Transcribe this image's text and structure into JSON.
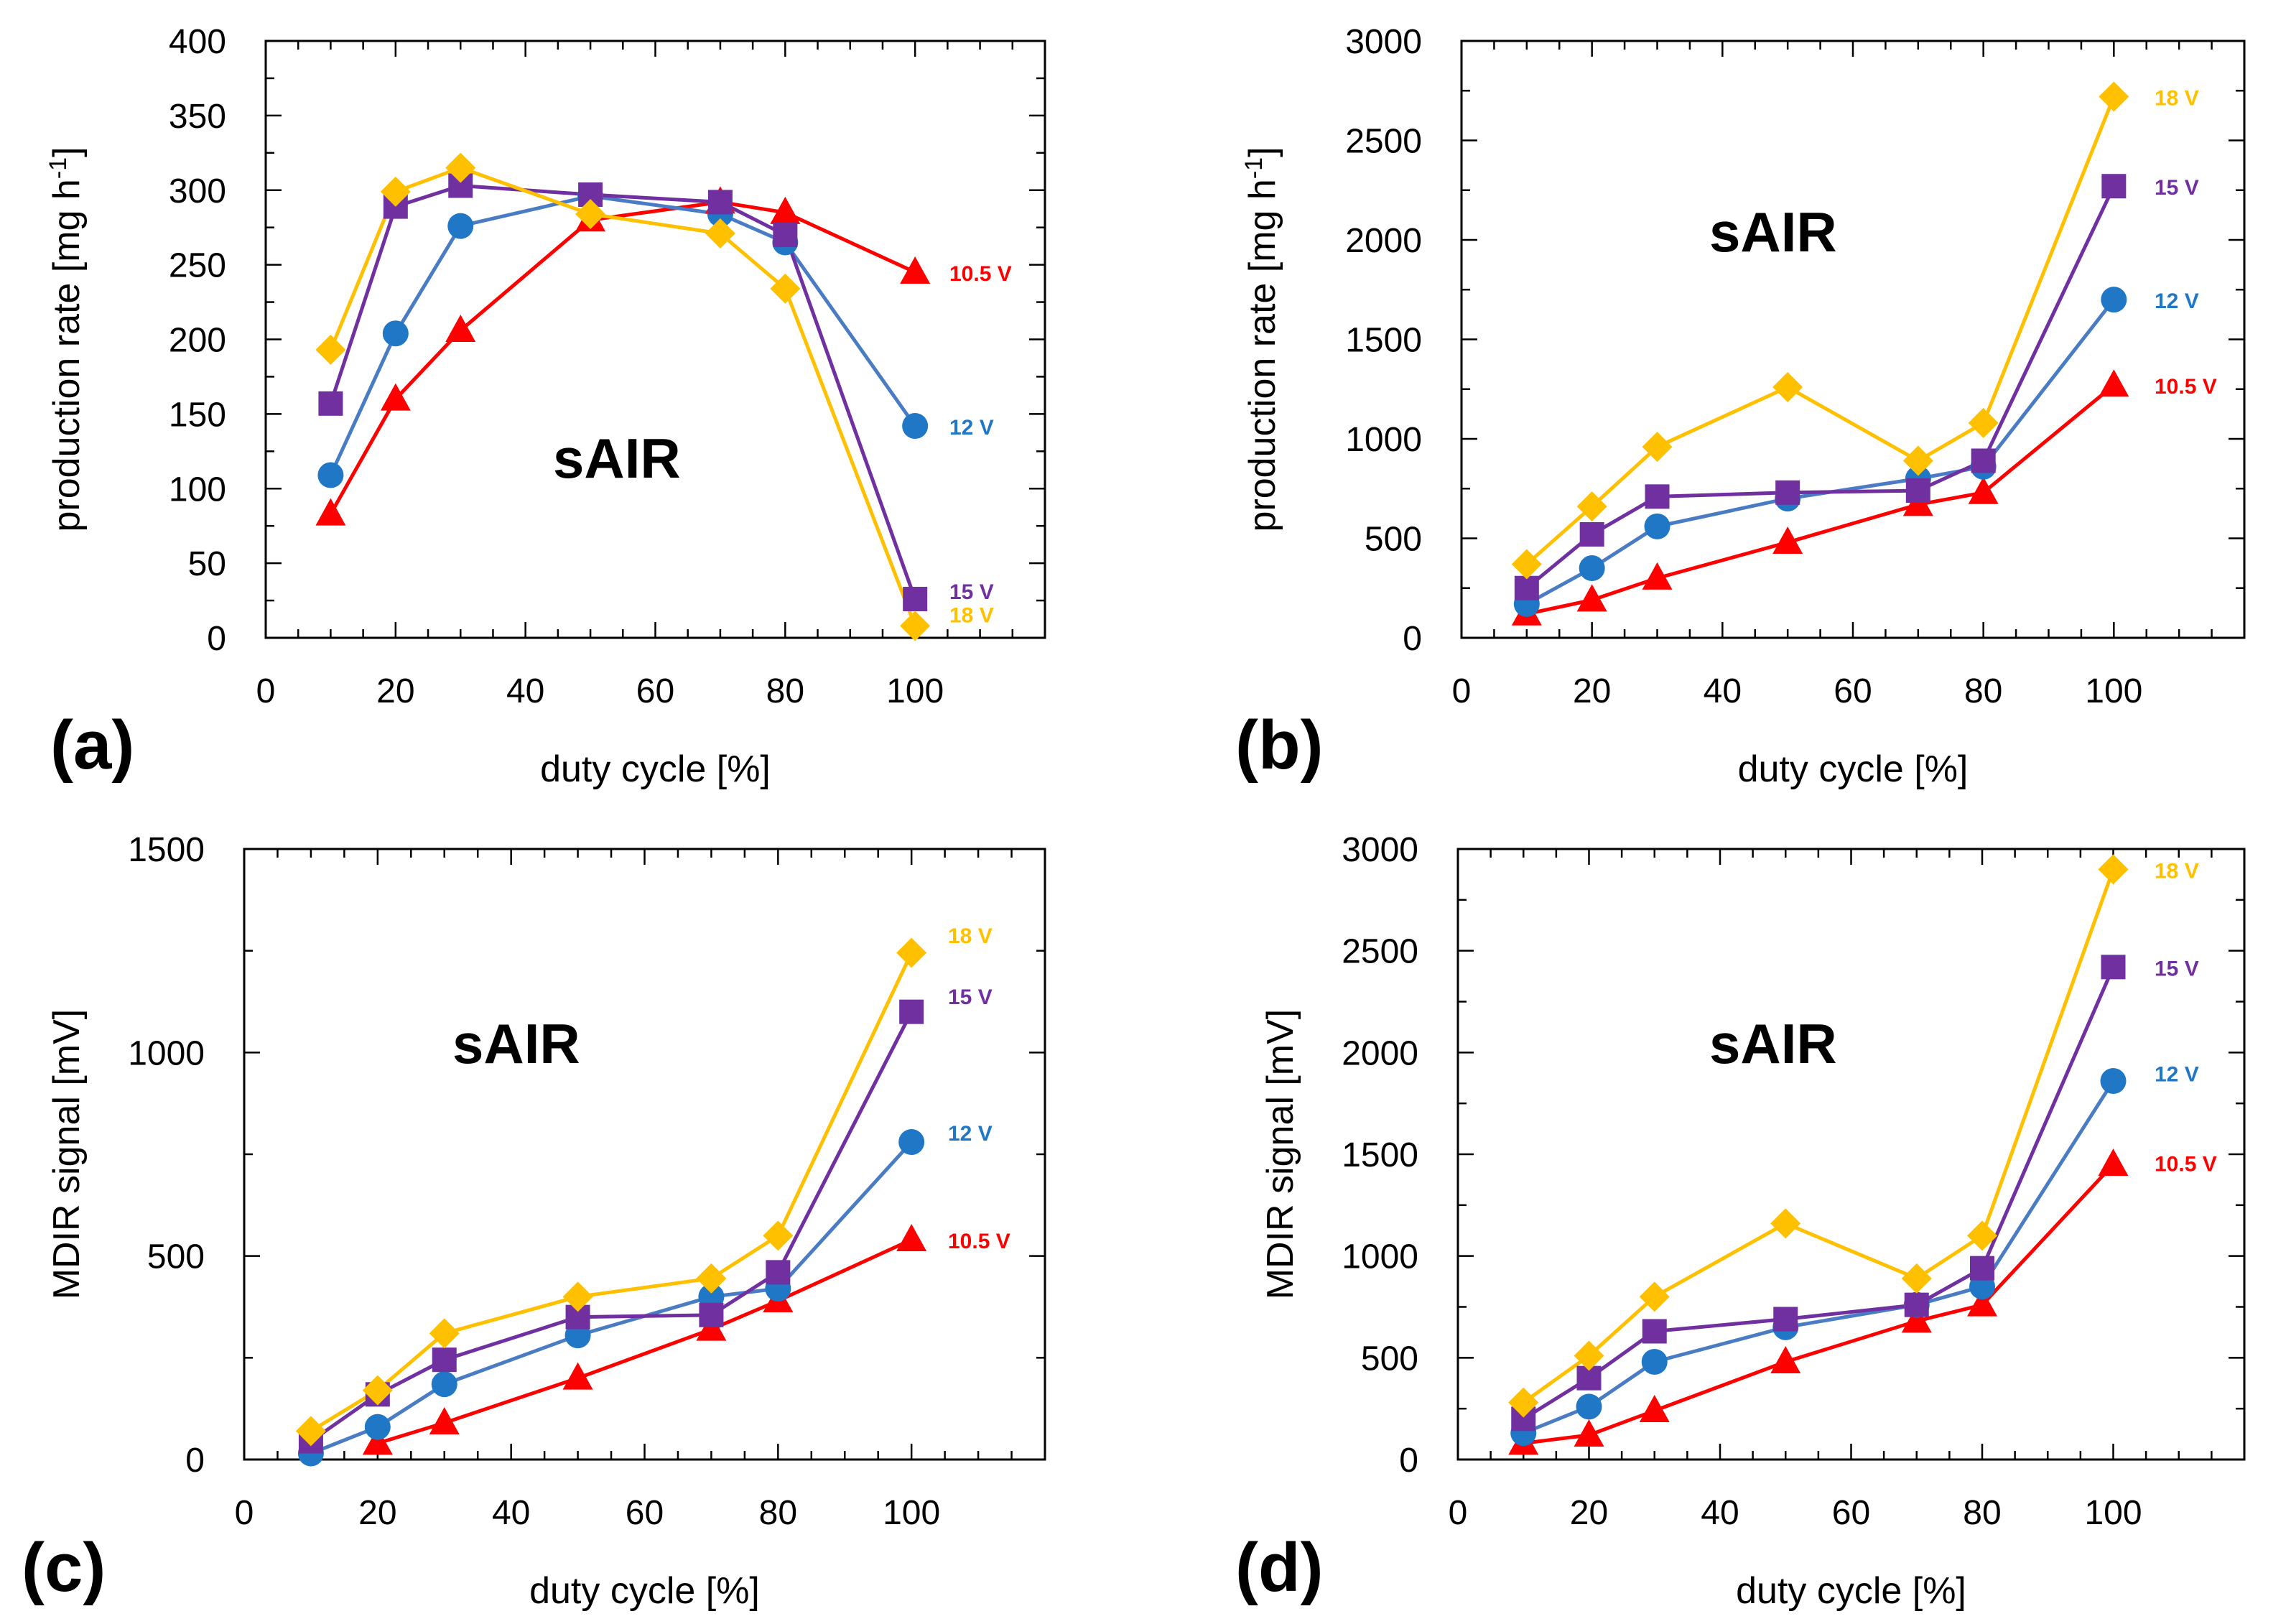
{
  "figure": {
    "colors": {
      "10.5 V": "#ff0000",
      "12 V": "#1f77c6",
      "15 V": "#7030a0",
      "18 V": "#ffc000",
      "line_10.5 V": "#ff0000",
      "line_12 V": "#4a7cc4",
      "line_15 V": "#7030a0",
      "line_18 V": "#ffc000"
    },
    "markers": {
      "10.5 V": "triangle",
      "12 V": "circle",
      "15 V": "square",
      "18 V": "diamond"
    }
  },
  "chart_data": [
    {
      "type": "line",
      "panel": "(a)",
      "annotation": "sAIR",
      "xlabel": "duty cycle [%]",
      "ylabel": "production rate [mg h",
      "ylabel_sup": "-1",
      "ylabel_end": "]",
      "xlim": [
        0,
        120
      ],
      "ylim": [
        0,
        400
      ],
      "xticks": [
        0,
        20,
        40,
        60,
        80,
        100
      ],
      "yticks": [
        0,
        50,
        100,
        150,
        200,
        250,
        300,
        350,
        400
      ],
      "x": [
        10,
        20,
        30,
        50,
        70,
        80,
        100
      ],
      "series": [
        {
          "name": "10.5 V",
          "values": [
            83,
            160,
            206,
            280,
            292,
            285,
            245
          ]
        },
        {
          "name": "12 V",
          "values": [
            109,
            204,
            276,
            296,
            284,
            265,
            142
          ]
        },
        {
          "name": "15 V",
          "values": [
            157,
            289,
            303,
            297,
            292,
            270,
            26
          ]
        },
        {
          "name": "18 V",
          "values": [
            193,
            299,
            315,
            284,
            271,
            234,
            8
          ]
        }
      ]
    },
    {
      "type": "line",
      "panel": "(b)",
      "annotation": "sAIR",
      "xlabel": "duty cycle [%]",
      "ylabel": "production rate [mg h",
      "ylabel_sup": "-1",
      "ylabel_end": "]",
      "xlim": [
        0,
        120
      ],
      "ylim": [
        0,
        3000
      ],
      "xticks": [
        0,
        20,
        40,
        60,
        80,
        100
      ],
      "yticks": [
        0,
        500,
        1000,
        1500,
        2000,
        2500,
        3000
      ],
      "x": [
        10,
        20,
        30,
        50,
        70,
        80,
        100
      ],
      "series": [
        {
          "name": "10.5 V",
          "values": [
            120,
            190,
            300,
            480,
            670,
            730,
            1270
          ]
        },
        {
          "name": "12 V",
          "values": [
            170,
            350,
            560,
            700,
            800,
            860,
            1700
          ]
        },
        {
          "name": "15 V",
          "values": [
            250,
            520,
            710,
            730,
            740,
            890,
            2270
          ]
        },
        {
          "name": "18 V",
          "values": [
            370,
            660,
            960,
            1260,
            890,
            1080,
            2720
          ]
        }
      ]
    },
    {
      "type": "line",
      "panel": "(c)",
      "annotation": "sAIR",
      "xlabel": "duty cycle [%]",
      "ylabel": "MDIR signal [mV]",
      "xlim": [
        0,
        120
      ],
      "ylim": [
        0,
        1500
      ],
      "xticks": [
        0,
        20,
        40,
        60,
        80,
        100
      ],
      "yticks": [
        0,
        500,
        1000,
        1500
      ],
      "x": [
        10,
        20,
        30,
        50,
        70,
        80,
        100
      ],
      "series": [
        {
          "name": "10.5 V",
          "values": [
            null,
            40,
            90,
            200,
            320,
            390,
            540
          ]
        },
        {
          "name": "12 V",
          "values": [
            15,
            80,
            185,
            305,
            400,
            420,
            780
          ]
        },
        {
          "name": "15 V",
          "values": [
            45,
            160,
            245,
            350,
            355,
            460,
            1100
          ]
        },
        {
          "name": "18 V",
          "values": [
            70,
            170,
            310,
            400,
            445,
            550,
            1245
          ]
        }
      ]
    },
    {
      "type": "line",
      "panel": "(d)",
      "annotation": "sAIR",
      "xlabel": "duty cycle [%]",
      "ylabel": "MDIR signal [mV]",
      "xlim": [
        0,
        120
      ],
      "ylim": [
        0,
        3000
      ],
      "xticks": [
        0,
        20,
        40,
        60,
        80,
        100
      ],
      "yticks": [
        0,
        500,
        1000,
        1500,
        2000,
        2500,
        3000
      ],
      "x": [
        10,
        20,
        30,
        50,
        70,
        80,
        100
      ],
      "series": [
        {
          "name": "10.5 V",
          "values": [
            80,
            120,
            240,
            480,
            680,
            760,
            1450
          ]
        },
        {
          "name": "12 V",
          "values": [
            130,
            260,
            480,
            650,
            760,
            850,
            1860
          ]
        },
        {
          "name": "15 V",
          "values": [
            200,
            400,
            630,
            690,
            760,
            940,
            2420
          ]
        },
        {
          "name": "18 V",
          "values": [
            280,
            510,
            800,
            1160,
            890,
            1100,
            2900
          ]
        }
      ]
    }
  ]
}
